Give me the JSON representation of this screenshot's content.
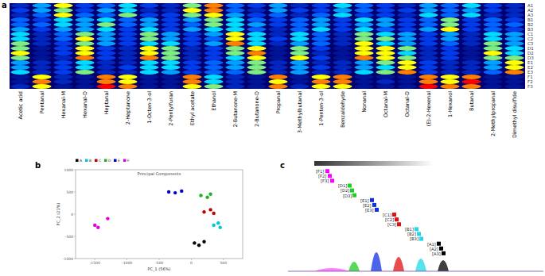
{
  "panel_labels": [
    "a",
    "b",
    "c"
  ],
  "chart_data": [
    {
      "type": "heatmap",
      "categories": [
        "Acetic acid",
        "Pentanal",
        "Hexanal-M",
        "Hexanal-D",
        "Heptanal",
        "2-Heptanone",
        "1-Octen-3-ol",
        "2-Pentylfuran",
        "Ethyl acetate",
        "Ethanol",
        "2-Butanone-M",
        "2-Butanone-D",
        "Propanal",
        "3-Methylbutanal",
        "1-Penten-3-ol",
        "Benzaldehyde",
        "Nonanal",
        "Octanal-M",
        "Octanal-D",
        "(E)-2-Hexenal",
        "1-Hexanol",
        "Butanal",
        "2-Methylpropanal",
        "Dimethyl disulfide"
      ],
      "rows": [
        "A1",
        "A2",
        "A3",
        "B1",
        "B2",
        "B3",
        "C1",
        "C2",
        "C3",
        "D1",
        "D2",
        "D3",
        "E1",
        "E2",
        "E3",
        "F1",
        "F2",
        "F3"
      ],
      "zlim": [
        0,
        1
      ],
      "values": [
        [
          0.2,
          0.5,
          0.8,
          0.3,
          0.4,
          0.6,
          0.3,
          0.2,
          0.7,
          0.9,
          0.4,
          0.3,
          0.5,
          0.2,
          0.3,
          0.6,
          0.4,
          0.3,
          0.2,
          0.5,
          0.4,
          0.6,
          0.3,
          0.2
        ],
        [
          0.3,
          0.5,
          0.7,
          0.3,
          0.5,
          0.6,
          0.2,
          0.2,
          0.8,
          0.9,
          0.4,
          0.2,
          0.5,
          0.3,
          0.3,
          0.5,
          0.4,
          0.3,
          0.3,
          0.5,
          0.4,
          0.5,
          0.3,
          0.2
        ],
        [
          0.2,
          0.4,
          0.8,
          0.4,
          0.4,
          0.7,
          0.3,
          0.3,
          0.7,
          0.8,
          0.5,
          0.3,
          0.4,
          0.2,
          0.4,
          0.6,
          0.3,
          0.3,
          0.2,
          0.6,
          0.4,
          0.6,
          0.2,
          0.2
        ],
        [
          0.4,
          0.3,
          0.6,
          0.5,
          0.6,
          0.4,
          0.5,
          0.3,
          0.5,
          0.7,
          0.6,
          0.4,
          0.3,
          0.4,
          0.5,
          0.3,
          0.6,
          0.5,
          0.3,
          0.4,
          0.7,
          0.3,
          0.4,
          0.3
        ],
        [
          0.4,
          0.4,
          0.6,
          0.5,
          0.7,
          0.4,
          0.5,
          0.3,
          0.4,
          0.7,
          0.6,
          0.5,
          0.3,
          0.4,
          0.5,
          0.3,
          0.5,
          0.5,
          0.3,
          0.4,
          0.7,
          0.3,
          0.4,
          0.4
        ],
        [
          0.5,
          0.3,
          0.5,
          0.5,
          0.6,
          0.3,
          0.6,
          0.3,
          0.5,
          0.6,
          0.6,
          0.4,
          0.2,
          0.4,
          0.6,
          0.3,
          0.6,
          0.4,
          0.3,
          0.5,
          0.8,
          0.3,
          0.4,
          0.3
        ],
        [
          0.6,
          0.2,
          0.4,
          0.7,
          0.5,
          0.3,
          0.7,
          0.5,
          0.3,
          0.5,
          0.8,
          0.6,
          0.2,
          0.6,
          0.4,
          0.2,
          0.7,
          0.6,
          0.5,
          0.3,
          0.5,
          0.2,
          0.6,
          0.5
        ],
        [
          0.6,
          0.2,
          0.4,
          0.8,
          0.5,
          0.3,
          0.7,
          0.5,
          0.3,
          0.4,
          0.8,
          0.6,
          0.3,
          0.6,
          0.4,
          0.2,
          0.7,
          0.7,
          0.5,
          0.3,
          0.5,
          0.2,
          0.6,
          0.5
        ],
        [
          0.7,
          0.2,
          0.3,
          0.7,
          0.5,
          0.3,
          0.6,
          0.6,
          0.3,
          0.5,
          0.9,
          0.6,
          0.2,
          0.5,
          0.4,
          0.2,
          0.8,
          0.6,
          0.5,
          0.3,
          0.4,
          0.2,
          0.7,
          0.5
        ],
        [
          0.7,
          0.1,
          0.3,
          0.8,
          0.3,
          0.2,
          0.8,
          0.7,
          0.2,
          0.3,
          0.7,
          0.8,
          0.1,
          0.7,
          0.3,
          0.1,
          0.8,
          0.8,
          0.7,
          0.2,
          0.3,
          0.1,
          0.7,
          0.6
        ],
        [
          0.8,
          0.1,
          0.3,
          0.8,
          0.3,
          0.2,
          0.8,
          0.7,
          0.2,
          0.3,
          0.7,
          0.9,
          0.1,
          0.7,
          0.2,
          0.1,
          0.8,
          0.8,
          0.6,
          0.2,
          0.3,
          0.1,
          0.8,
          0.6
        ],
        [
          0.7,
          0.1,
          0.2,
          0.9,
          0.3,
          0.2,
          0.9,
          0.7,
          0.2,
          0.3,
          0.6,
          0.8,
          0.1,
          0.8,
          0.3,
          0.1,
          0.9,
          0.8,
          0.7,
          0.2,
          0.3,
          0.1,
          0.7,
          0.7
        ],
        [
          0.5,
          0.2,
          0.3,
          0.6,
          0.2,
          0.2,
          0.6,
          0.6,
          0.3,
          0.4,
          0.5,
          0.7,
          0.2,
          0.5,
          0.2,
          0.2,
          0.5,
          0.7,
          0.8,
          0.3,
          0.2,
          0.2,
          0.5,
          0.8
        ],
        [
          0.5,
          0.2,
          0.3,
          0.6,
          0.2,
          0.3,
          0.6,
          0.6,
          0.3,
          0.4,
          0.5,
          0.7,
          0.2,
          0.5,
          0.3,
          0.2,
          0.5,
          0.6,
          0.8,
          0.3,
          0.2,
          0.2,
          0.5,
          0.8
        ],
        [
          0.6,
          0.2,
          0.3,
          0.7,
          0.2,
          0.2,
          0.6,
          0.5,
          0.3,
          0.4,
          0.4,
          0.7,
          0.2,
          0.5,
          0.2,
          0.2,
          0.6,
          0.7,
          0.9,
          0.3,
          0.2,
          0.2,
          0.4,
          0.9
        ],
        [
          0.1,
          0.8,
          0.2,
          0.1,
          0.9,
          0.8,
          0.1,
          0.1,
          0.9,
          0.6,
          0.2,
          0.1,
          0.9,
          0.1,
          0.8,
          0.9,
          0.1,
          0.1,
          0.1,
          0.9,
          0.8,
          0.9,
          0.1,
          0.1
        ],
        [
          0.1,
          0.9,
          0.2,
          0.1,
          0.9,
          0.8,
          0.1,
          0.1,
          0.9,
          0.6,
          0.2,
          0.1,
          0.8,
          0.1,
          0.9,
          0.9,
          0.1,
          0.2,
          0.1,
          0.9,
          0.8,
          1.0,
          0.1,
          0.1
        ],
        [
          0.2,
          0.8,
          0.1,
          0.1,
          1.0,
          0.9,
          0.1,
          0.1,
          0.8,
          0.7,
          0.2,
          0.1,
          0.9,
          0.2,
          0.8,
          0.8,
          0.1,
          0.1,
          0.1,
          1.0,
          0.9,
          0.9,
          0.1,
          0.1
        ]
      ]
    },
    {
      "type": "scatter",
      "title": "Principal Components",
      "x_label": "PC_1 (56%)",
      "y_label": "PC_2 (21%)",
      "xlim": [
        -1800,
        800
      ],
      "xticks": [
        -1500,
        -1000,
        -500,
        0,
        500
      ],
      "ylim": [
        -1000,
        1000
      ],
      "yticks": [
        -1000,
        -500,
        0,
        500,
        1000
      ],
      "legend": "top-left",
      "marker": "circle",
      "series": [
        {
          "name": "A",
          "color": "#000000",
          "x": [
            50,
            120,
            200
          ],
          "values": [
            -650,
            -700,
            -620
          ]
        },
        {
          "name": "B",
          "color": "#00c8d8",
          "x": [
            350,
            420,
            450
          ],
          "values": [
            -250,
            -200,
            -300
          ]
        },
        {
          "name": "C",
          "color": "#c00000",
          "x": [
            200,
            300,
            350
          ],
          "values": [
            50,
            100,
            20
          ]
        },
        {
          "name": "D",
          "color": "#20b020",
          "x": [
            150,
            250,
            300
          ],
          "values": [
            420,
            380,
            450
          ]
        },
        {
          "name": "E",
          "color": "#0000c8",
          "x": [
            -350,
            -250,
            -150
          ],
          "values": [
            500,
            480,
            520
          ]
        },
        {
          "name": "F",
          "color": "#e000e0",
          "x": [
            -1500,
            -1450,
            -1300
          ],
          "values": [
            -250,
            -300,
            -100
          ]
        }
      ]
    }
  ],
  "diagram": {
    "groups": [
      {
        "name": "F",
        "color": "#ff00ff",
        "labels": [
          "[F1]",
          "[F2]",
          "[F3]"
        ],
        "peak_height": 4
      },
      {
        "name": "D",
        "color": "#22cc22",
        "labels": [
          "[D1]",
          "[D2]",
          "[D3]"
        ],
        "peak_height": 12
      },
      {
        "name": "E",
        "color": "#1030e0",
        "labels": [
          "[E1]",
          "[E2]",
          "[E3]"
        ],
        "peak_height": 24
      },
      {
        "name": "C",
        "color": "#e01010",
        "labels": [
          "[C1]",
          "[C2]",
          "[C3]"
        ],
        "peak_height": 18
      },
      {
        "name": "B",
        "color": "#20d8e8",
        "labels": [
          "[B1]",
          "[B2]",
          "[B3]"
        ],
        "peak_height": 16
      },
      {
        "name": "A",
        "color": "#000000",
        "labels": [
          "[A1]",
          "[A2]",
          "[A3]"
        ],
        "peak_height": 14
      }
    ]
  }
}
